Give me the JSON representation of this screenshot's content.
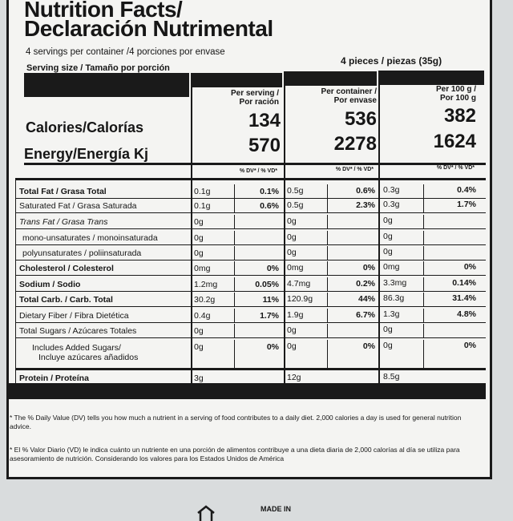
{
  "header": {
    "title_line1": "Nutrition Facts/",
    "title_line2": "Declaración Nutrimental",
    "servings": "4 servings per container /4 porciones por envase",
    "serving_size": "Serving size / Tamaño por porción",
    "serving_size_value": "4 pieces / piezas (35g)"
  },
  "columns": [
    {
      "hdr1": "Per serving /",
      "hdr2": "Por ración",
      "calories": "134",
      "energy": "570"
    },
    {
      "hdr1": "Per container /",
      "hdr2": "Por envase",
      "calories": "536",
      "energy": "2278"
    },
    {
      "hdr1": "Per 100 g /",
      "hdr2": "Por 100 g",
      "calories": "382",
      "energy": "1624"
    }
  ],
  "calories_label": "Calories/Calorías",
  "energy_label": "Energy/Energía Kj",
  "dv_header": "% DV* / % VD*",
  "rows": [
    {
      "label": "Total Fat / Grasa  Total",
      "style": "b",
      "cells": [
        [
          "0.1g",
          "0.1%"
        ],
        [
          "0.5g",
          "0.6%"
        ],
        [
          "0.3g",
          "0.4%"
        ]
      ]
    },
    {
      "label": "Saturated Fat / Grasa Saturada",
      "style": "",
      "cells": [
        [
          "0.1g",
          "0.6%"
        ],
        [
          "0.5g",
          "2.3%"
        ],
        [
          "0.3g",
          "1.7%"
        ]
      ]
    },
    {
      "label": "Trans Fat / Grasa Trans",
      "style": "i",
      "cells": [
        [
          "0g",
          ""
        ],
        [
          "0g",
          ""
        ],
        [
          "0g",
          ""
        ]
      ]
    },
    {
      "label": "mono-unsaturates / monoinsaturada",
      "style": "ind",
      "cells": [
        [
          "0g",
          ""
        ],
        [
          "0g",
          ""
        ],
        [
          "0g",
          ""
        ]
      ]
    },
    {
      "label": "polyunsaturates / poliinsaturada",
      "style": "ind",
      "cells": [
        [
          "0g",
          ""
        ],
        [
          "0g",
          ""
        ],
        [
          "0g",
          ""
        ]
      ]
    },
    {
      "label": "Cholesterol / Colesterol",
      "style": "b",
      "cells": [
        [
          "0mg",
          "0%"
        ],
        [
          "0mg",
          "0%"
        ],
        [
          "0mg",
          "0%"
        ]
      ]
    },
    {
      "label": "Sodium / Sodio",
      "style": "b",
      "cells": [
        [
          "1.2mg",
          "0.05%"
        ],
        [
          "4.7mg",
          "0.2%"
        ],
        [
          "3.3mg",
          "0.14%"
        ]
      ]
    },
    {
      "label": "Total Carb. / Carb. Total",
      "style": "b",
      "cells": [
        [
          "30.2g",
          "11%"
        ],
        [
          "120.9g",
          "44%"
        ],
        [
          "86.3g",
          "31.4%"
        ]
      ]
    },
    {
      "label": "Dietary Fiber / Fibra Dietética",
      "style": "",
      "cells": [
        [
          "0.4g",
          "1.7%"
        ],
        [
          "1.9g",
          "6.7%"
        ],
        [
          "1.3g",
          "4.8%"
        ]
      ]
    },
    {
      "label": "Total Sugars / Azúcares Totales",
      "style": "",
      "cells": [
        [
          "0g",
          ""
        ],
        [
          "0g",
          ""
        ],
        [
          "0g",
          ""
        ]
      ]
    },
    {
      "label": "Includes Added Sugars/",
      "label2": "Incluye azúcares añadidos",
      "style": "ind2",
      "cells": [
        [
          "0g",
          "0%"
        ],
        [
          "0g",
          "0%"
        ],
        [
          "0g",
          "0%"
        ]
      ]
    },
    {
      "label": "Protein / Proteína",
      "style": "b",
      "cells": [
        [
          "3g",
          ""
        ],
        [
          "12g",
          ""
        ],
        [
          "8.5g",
          ""
        ]
      ]
    }
  ],
  "footnote_en": "* The % Daily Value (DV) tells you how much a nutrient in a serving of food contributes to a daily diet. 2,000 calories a day is used for general nutrition advice.",
  "footnote_es": "* El % Valor Diario (VD) le indica cuánto un nutriente en una porción de alimentos contribuye a una dieta diaria de 2,000 calorías al día se utiliza para asesoramiento de nutrición. Considerando los valores para los Estados Unidos de América",
  "bottom_text": "MADE IN"
}
